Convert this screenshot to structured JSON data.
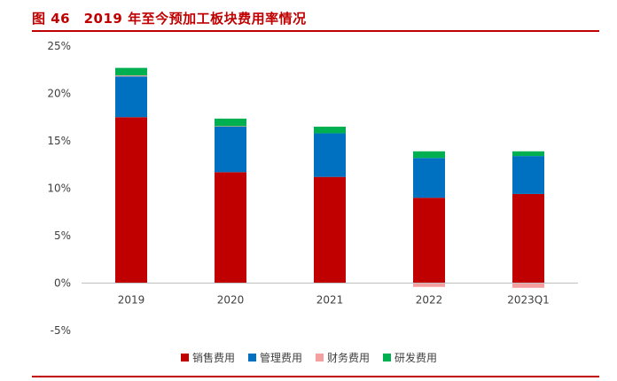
{
  "header": {
    "title": "图 46　2019 年至今预加工板块费用率情况"
  },
  "colors": {
    "accent": "#c00000",
    "sales": "#c00000",
    "admin": "#0070c0",
    "finance": "#f4a0a0",
    "rd": "#00b050"
  },
  "chart_data": {
    "type": "bar",
    "stacked": true,
    "title": "",
    "xlabel": "",
    "ylabel": "",
    "categories": [
      "2019",
      "2020",
      "2021",
      "2022",
      "2023Q1"
    ],
    "ylim": [
      -5,
      25
    ],
    "yticks": [
      "25%",
      "20%",
      "15%",
      "10%",
      "5%",
      "0%",
      "-5%"
    ],
    "ytick_values": [
      25,
      20,
      15,
      10,
      5,
      0,
      -5
    ],
    "grid": false,
    "legend_position": "bottom",
    "series": [
      {
        "name": "销售费用",
        "color": "#c00000",
        "values": [
          17.5,
          11.7,
          11.2,
          9.0,
          9.4
        ]
      },
      {
        "name": "管理费用",
        "color": "#0070c0",
        "values": [
          4.3,
          4.8,
          4.6,
          4.2,
          4.0
        ]
      },
      {
        "name": "财务费用",
        "color": "#f4a0a0",
        "values": [
          0.1,
          0.05,
          0.0,
          -0.4,
          -0.5
        ]
      },
      {
        "name": "研发费用",
        "color": "#00b050",
        "values": [
          0.8,
          0.8,
          0.7,
          0.7,
          0.5
        ]
      }
    ]
  }
}
